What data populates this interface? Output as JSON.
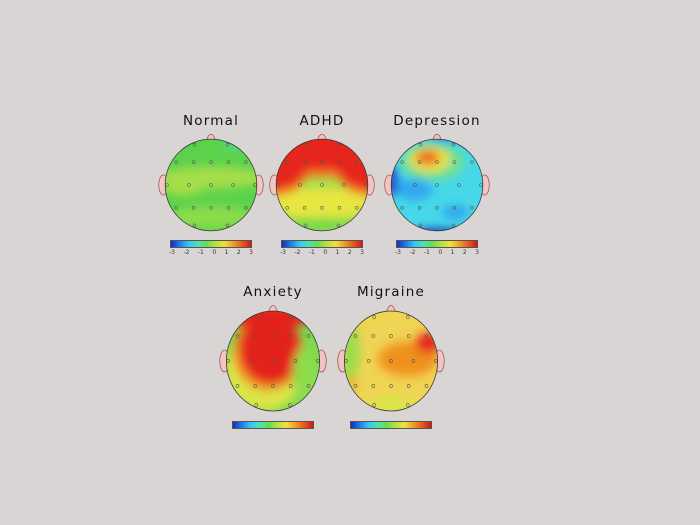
{
  "maps": [
    {
      "title": "Normal"
    },
    {
      "title": "ADHD"
    },
    {
      "title": "Depression"
    },
    {
      "title": "Anxiety"
    },
    {
      "title": "Migraine"
    }
  ],
  "colorbar": {
    "ticks": [
      "-3",
      "-2",
      "-1",
      "0",
      "1",
      "2",
      "3"
    ],
    "colors": [
      "#1030c0",
      "#35c8ee",
      "#66dc55",
      "#f0e03c",
      "#f0a028",
      "#d01818"
    ]
  }
}
